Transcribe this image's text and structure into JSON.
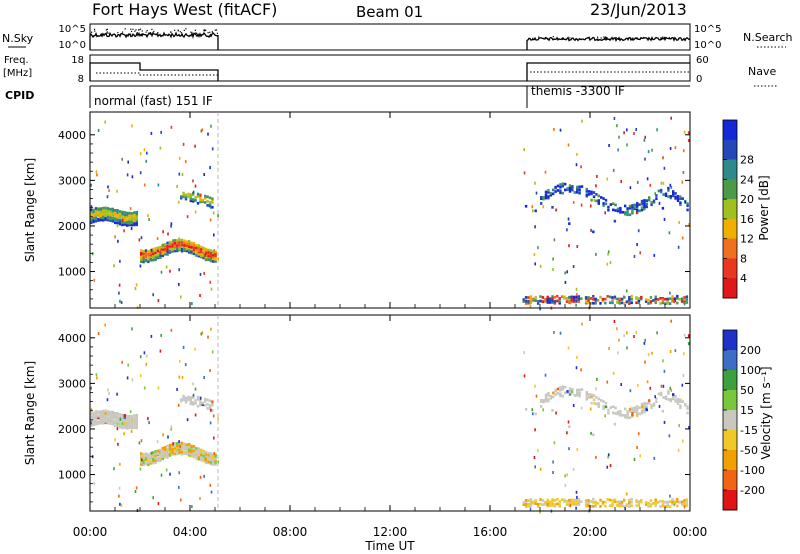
{
  "header": {
    "station": "Fort Hays West (fitACF)",
    "beam": "Beam 01",
    "date": "23/Jun/2013"
  },
  "params": {
    "nsky_label": "N.Sky",
    "nsky_ticks": [
      "10^5",
      "10^0"
    ],
    "nsearch_label": "N.Search",
    "nsearch_ticks": [
      "10^5",
      "10^0"
    ],
    "freq_label_1": "Freq.",
    "freq_label_2": "[MHz]",
    "freq_ticks": [
      "18",
      "8"
    ],
    "nave_label": "Nave",
    "nave_ticks": [
      "60",
      "0"
    ],
    "cpid_label": "CPID",
    "cpid_1": "normal (fast) 151 IF",
    "cpid_2": "themis -3300 IF"
  },
  "chart_data": [
    {
      "type": "heatmap",
      "name": "power",
      "ylabel": "Slant Range [km]",
      "ylim": [
        200,
        4500
      ],
      "yticks": [
        "1000",
        "2000",
        "3000",
        "4000"
      ],
      "colorbar_label": "Power [dB]",
      "colorbar_ticks": [
        "4",
        "8",
        "12",
        "16",
        "20",
        "24",
        "28"
      ],
      "colorbar_colors": [
        "#1428d8",
        "#2448b8",
        "#2e8a8a",
        "#4a9a4a",
        "#a0c020",
        "#f0b000",
        "#f07020",
        "#e83820",
        "#e01818"
      ]
    },
    {
      "type": "heatmap",
      "name": "velocity",
      "ylabel": "Slant Range [km]",
      "ylim": [
        200,
        4500
      ],
      "yticks": [
        "1000",
        "2000",
        "3000",
        "4000"
      ],
      "colorbar_label": "Velocity [m s⁻¹]",
      "colorbar_ticks": [
        "200",
        "100",
        "50",
        "15",
        "-15",
        "-50",
        "-100",
        "-200"
      ],
      "colorbar_colors": [
        "#1e32c8",
        "#3c6ec8",
        "#3ca03c",
        "#78c83c",
        "#c8c8c0",
        "#f0c828",
        "#f0a000",
        "#f06414",
        "#e01414"
      ],
      "xlabel": "Time UT",
      "xticks": [
        "00:00",
        "04:00",
        "08:00",
        "12:00",
        "16:00",
        "20:00",
        "00:00"
      ],
      "xlim": [
        0,
        24
      ]
    }
  ]
}
